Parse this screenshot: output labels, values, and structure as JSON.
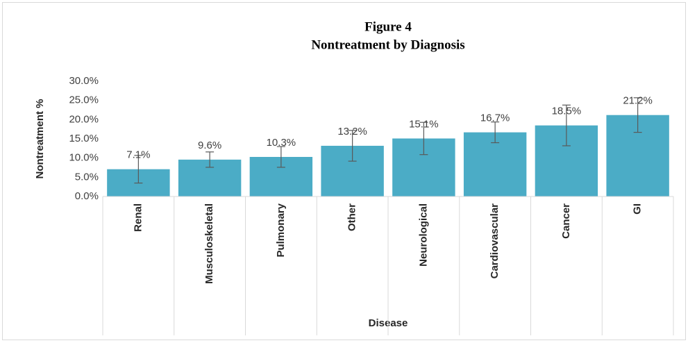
{
  "chart_data": {
    "type": "bar",
    "title": [
      "Figure 4",
      "Nontreatment by Diagnosis"
    ],
    "x_label": "Disease",
    "y_label": "Nontreatment %",
    "categories": [
      "Renal",
      "Musculoskeletal",
      "Pulmonary",
      "Other",
      "Neurological",
      "Cardiovascular",
      "Cancer",
      "GI"
    ],
    "values": [
      7.1,
      9.6,
      10.3,
      13.2,
      15.1,
      16.7,
      18.5,
      21.2
    ],
    "value_labels": [
      "7.1%",
      "9.6%",
      "10.3%",
      "13.2%",
      "15.1%",
      "16.7%",
      "18.5%",
      "21.2%"
    ],
    "errors": [
      3.6,
      2.0,
      2.7,
      4.0,
      4.2,
      2.7,
      5.3,
      4.5
    ],
    "color": "#4bacc6",
    "ylim": [
      0,
      30
    ],
    "yticks": [
      {
        "value": 0,
        "label": "0.0%"
      },
      {
        "value": 5,
        "label": "5.0%"
      },
      {
        "value": 10,
        "label": "10.0%"
      },
      {
        "value": 15,
        "label": "15.0%"
      },
      {
        "value": 20,
        "label": "20.0%"
      },
      {
        "value": 25,
        "label": "25.0%"
      },
      {
        "value": 30,
        "label": "30.0%"
      }
    ],
    "grid": false
  }
}
